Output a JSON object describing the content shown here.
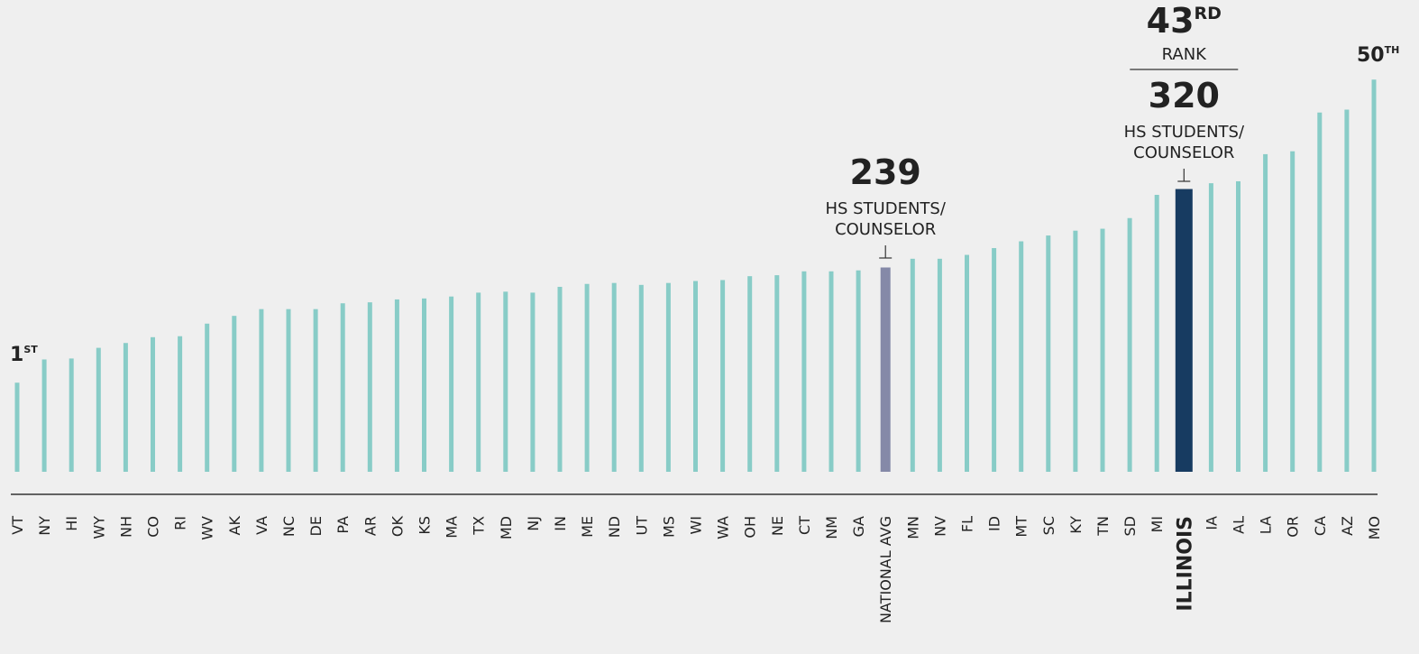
{
  "chart_data": {
    "type": "bar",
    "categories": [
      "VT",
      "NY",
      "HI",
      "WY",
      "NH",
      "CO",
      "RI",
      "WV",
      "AK",
      "VA",
      "NC",
      "DE",
      "PA",
      "AR",
      "OK",
      "KS",
      "MA",
      "TX",
      "MD",
      "NJ",
      "IN",
      "ME",
      "ND",
      "UT",
      "MS",
      "WI",
      "WA",
      "OH",
      "NE",
      "CT",
      "NM",
      "GA",
      "NATIONAL AVG",
      "MN",
      "NV",
      "FL",
      "ID",
      "MT",
      "SC",
      "KY",
      "TN",
      "SD",
      "MI",
      "ILLINOIS",
      "IA",
      "AL",
      "LA",
      "OR",
      "CA",
      "AZ",
      "MO"
    ],
    "values": [
      120,
      144,
      145,
      156,
      161,
      167,
      168,
      181,
      189,
      196,
      196,
      196,
      202,
      203,
      206,
      207,
      209,
      213,
      214,
      213,
      219,
      222,
      223,
      221,
      223,
      225,
      226,
      230,
      231,
      235,
      235,
      236,
      239,
      248,
      248,
      252,
      259,
      266,
      272,
      277,
      279,
      290,
      314,
      320,
      326,
      328,
      356,
      359,
      399,
      402,
      433
    ],
    "color": "#88ccc7",
    "highlights": [
      {
        "index": 32,
        "color": "#8589a8"
      },
      {
        "index": 43,
        "color": "#173b61"
      }
    ],
    "unit_label": [
      "HS STUDENTS/",
      "COUNSELOR"
    ],
    "rank_label": "RANK",
    "ranks": [
      {
        "index": 0,
        "rank": "1",
        "suffix": "ST"
      },
      {
        "index": 43,
        "rank": "43",
        "suffix": "RD"
      },
      {
        "index": 50,
        "rank": "50",
        "suffix": "TH"
      }
    ],
    "ylim": [
      28,
      450
    ]
  }
}
